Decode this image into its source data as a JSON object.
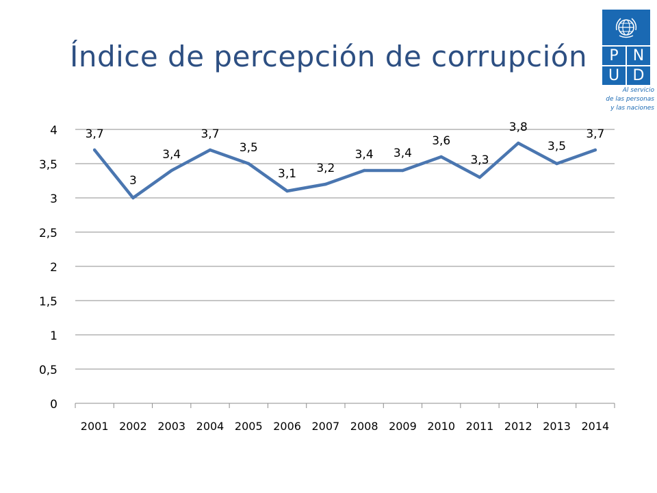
{
  "slide": {
    "title": "Índice de percepción de corrupción"
  },
  "logo": {
    "letters": [
      "P",
      "N",
      "U",
      "D"
    ],
    "tagline": [
      "Al servicio",
      "de las personas",
      "y las naciones"
    ],
    "color": "#1a69b3"
  },
  "chart_data": {
    "type": "line",
    "categories": [
      "2001",
      "2002",
      "2003",
      "2004",
      "2005",
      "2006",
      "2007",
      "2008",
      "2009",
      "2010",
      "2011",
      "2012",
      "2013",
      "2014"
    ],
    "series": [
      {
        "values": [
          3.7,
          3.0,
          3.4,
          3.7,
          3.5,
          3.1,
          3.2,
          3.4,
          3.4,
          3.6,
          3.3,
          3.8,
          3.5,
          3.7
        ],
        "labels": [
          "3,7",
          "3",
          "3,4",
          "3,7",
          "3,5",
          "3,1",
          "3,2",
          "3,4",
          "3,4",
          "3,6",
          "3,3",
          "3,8",
          "3,5",
          "3,7"
        ],
        "color": "#4a76b0"
      }
    ],
    "yticks": [
      0,
      0.5,
      1,
      1.5,
      2,
      2.5,
      3,
      3.5,
      4
    ],
    "ytick_labels": [
      "0",
      "0,5",
      "1",
      "1,5",
      "2",
      "2,5",
      "3",
      "3,5",
      "4"
    ],
    "ylim": [
      0,
      4
    ],
    "grid": true,
    "legend": "none",
    "title": "",
    "xlabel": "",
    "ylabel": ""
  }
}
